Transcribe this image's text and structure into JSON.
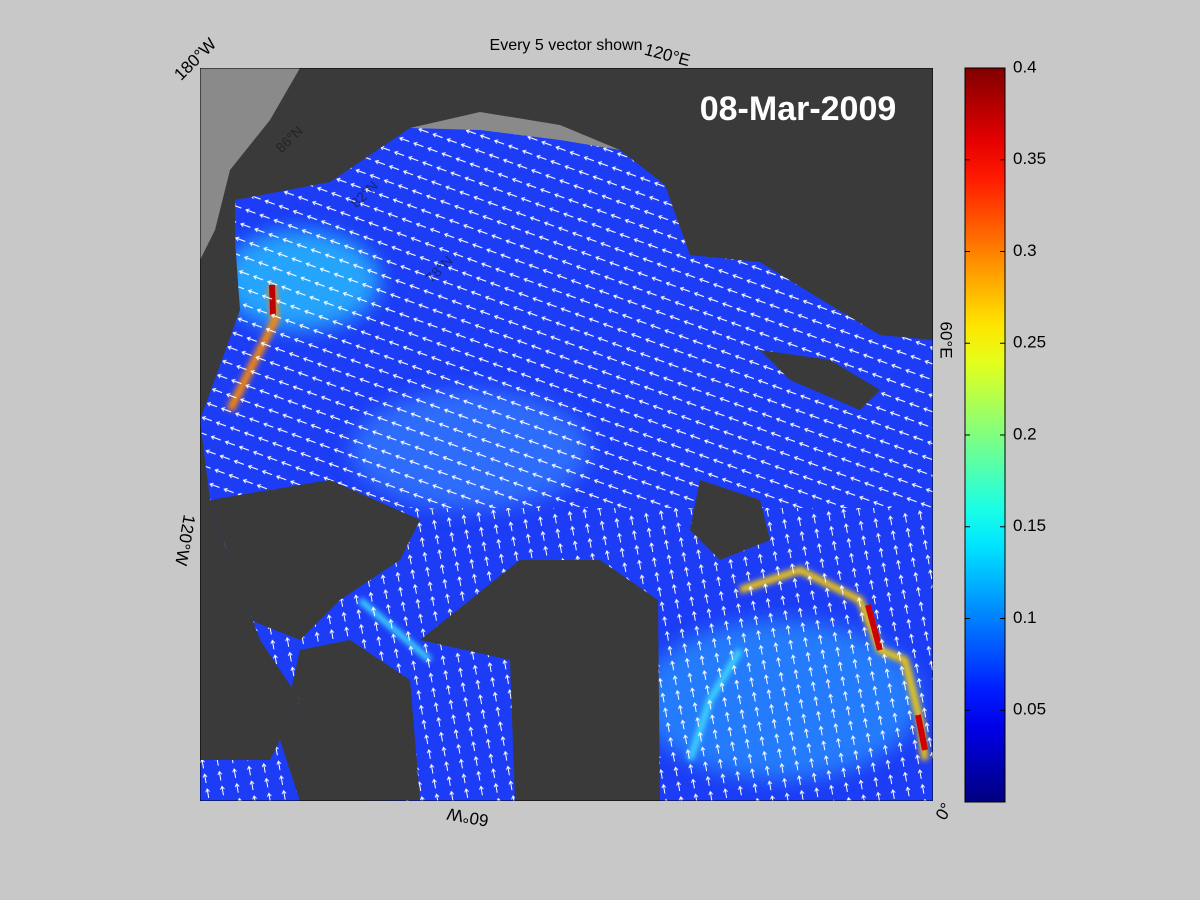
{
  "map": {
    "title": "Every 5 vector shown",
    "date_label": "08-Mar-2009",
    "lon_labels": [
      "180°W",
      "120°E",
      "60°E",
      "0°",
      "60°W",
      "120°W"
    ],
    "lat_labels": [
      "86°N",
      "82°N",
      "78°N"
    ],
    "colorbar": {
      "colormap": "jet",
      "lim": [
        0,
        0.4
      ],
      "ticks": [
        0.05,
        0.1,
        0.15,
        0.2,
        0.25,
        0.3,
        0.35,
        0.4
      ]
    }
  }
}
